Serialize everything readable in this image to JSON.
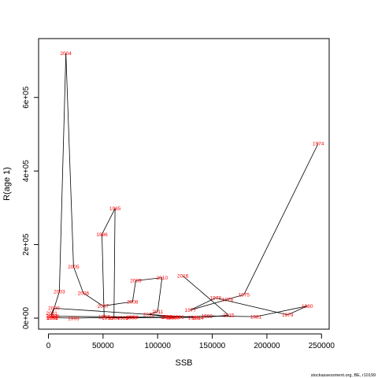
{
  "chart_data": {
    "type": "line",
    "title": "",
    "xlabel": "SSB",
    "ylabel": "R(age 1)",
    "xlim": [
      -9000,
      257000
    ],
    "ylim": [
      -30000,
      760000
    ],
    "x_ticks": [
      0,
      50000,
      100000,
      150000,
      200000,
      250000
    ],
    "x_tick_labels": [
      "0",
      "50000",
      "100000",
      "150000",
      "200000",
      "250000"
    ],
    "y_ticks": [
      0,
      200000,
      400000,
      600000
    ],
    "y_tick_labels": [
      "0e+00",
      "2e+05",
      "4e+05",
      "6e+05"
    ],
    "grid": false,
    "line_color": "#000000",
    "label_color": "#ff0000",
    "points": [
      {
        "year": "1974",
        "x": 247000,
        "y": 475000
      },
      {
        "year": "1975",
        "x": 179000,
        "y": 64000
      },
      {
        "year": "1976",
        "x": 164000,
        "y": 51000
      },
      {
        "year": "1977",
        "x": 130000,
        "y": 22000
      },
      {
        "year": "1978",
        "x": 153000,
        "y": 55000
      },
      {
        "year": "1979",
        "x": 219000,
        "y": 9000
      },
      {
        "year": "1980",
        "x": 237000,
        "y": 33000
      },
      {
        "year": "1981",
        "x": 190000,
        "y": 4000
      },
      {
        "year": "1982",
        "x": 145000,
        "y": 6000
      },
      {
        "year": "1983",
        "x": 119000,
        "y": 3000
      },
      {
        "year": "1984",
        "x": 60000,
        "y": 1000
      },
      {
        "year": "1985",
        "x": 61000,
        "y": 298000
      },
      {
        "year": "1986",
        "x": 49000,
        "y": 228000
      },
      {
        "year": "1987",
        "x": 51000,
        "y": 4000
      },
      {
        "year": "1988",
        "x": 68000,
        "y": 1000
      },
      {
        "year": "1989",
        "x": 115000,
        "y": 2000
      },
      {
        "year": "1990",
        "x": 5000,
        "y": 5000
      },
      {
        "year": "1991",
        "x": 3000,
        "y": 2000
      },
      {
        "year": "1992",
        "x": 4000,
        "y": 1000
      },
      {
        "year": "1993",
        "x": 23000,
        "y": 0
      },
      {
        "year": "1994",
        "x": 77000,
        "y": 3000
      },
      {
        "year": "1995",
        "x": 76000,
        "y": 2000
      },
      {
        "year": "1996",
        "x": 54000,
        "y": 1000
      },
      {
        "year": "1997",
        "x": 113000,
        "y": 2000
      },
      {
        "year": "1998",
        "x": 109000,
        "y": 3000
      },
      {
        "year": "1999",
        "x": 133000,
        "y": 2000
      },
      {
        "year": "2000",
        "x": 5000,
        "y": 27000
      },
      {
        "year": "2001",
        "x": 3000,
        "y": 13000
      },
      {
        "year": "2002",
        "x": 3000,
        "y": 6000
      },
      {
        "year": "2003",
        "x": 10000,
        "y": 72000
      },
      {
        "year": "2004",
        "x": 16000,
        "y": 720000
      },
      {
        "year": "2005",
        "x": 23000,
        "y": 140000
      },
      {
        "year": "2006",
        "x": 32000,
        "y": 68000
      },
      {
        "year": "2007",
        "x": 50000,
        "y": 33000
      },
      {
        "year": "2008",
        "x": 77000,
        "y": 45000
      },
      {
        "year": "2009",
        "x": 80000,
        "y": 102000
      },
      {
        "year": "2010",
        "x": 104000,
        "y": 110000
      },
      {
        "year": "2011",
        "x": 100000,
        "y": 18000
      },
      {
        "year": "2012",
        "x": 92000,
        "y": 10000
      },
      {
        "year": "2013",
        "x": 108000,
        "y": 4000
      },
      {
        "year": "2014",
        "x": 137000,
        "y": 1000
      },
      {
        "year": "2015",
        "x": 165000,
        "y": 8000
      },
      {
        "year": "2016",
        "x": 123000,
        "y": 115000
      }
    ],
    "path_order": [
      "1974",
      "1975",
      "1976",
      "1977",
      "1978",
      "1979",
      "1980",
      "1981",
      "1982",
      "1983",
      "1984",
      "1985",
      "1986",
      "1987",
      "1988",
      "1989",
      "1990",
      "1991",
      "1992",
      "1993",
      "1994",
      "1995",
      "1996",
      "1997",
      "1998",
      "1999",
      "2000",
      "2001",
      "2002",
      "2003",
      "2004",
      "2005",
      "2006",
      "2007",
      "2008",
      "2009",
      "2010",
      "2011",
      "2012",
      "2013",
      "2014",
      "2015",
      "2016"
    ]
  },
  "credit": "stockassessment.org, BE, r10199"
}
